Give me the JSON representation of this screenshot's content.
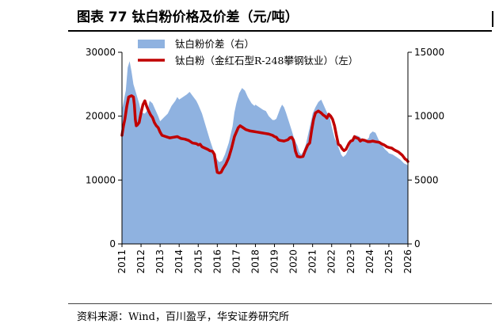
{
  "title": "图表 77 钛白粉价格及价差（元/吨）",
  "source": "资料来源：Wind，百川盈孚，华安证券研究所",
  "chart_data": {
    "type": "area+line",
    "x_ticks": [
      "2011",
      "2012",
      "2013",
      "2014",
      "2015",
      "2016",
      "2017",
      "2018",
      "2019",
      "2020",
      "2021",
      "2022",
      "2023",
      "2024",
      "2025",
      "2026"
    ],
    "x_range": [
      2011,
      2026
    ],
    "y_left_ticks": [
      "0",
      "10000",
      "20000",
      "30000"
    ],
    "y_left_range": [
      0,
      30000
    ],
    "y_right_ticks": [
      "0",
      "5000",
      "10000",
      "15000"
    ],
    "y_right_range": [
      0,
      15000
    ],
    "colors": {
      "spread": "#8fb2e0",
      "price": "#c00000"
    },
    "series": [
      {
        "name": "钛白粉价差（右）",
        "axis": "right",
        "type": "area",
        "points": [
          [
            2011.0,
            10500
          ],
          [
            2011.2,
            12000
          ],
          [
            2011.3,
            13800
          ],
          [
            2011.4,
            14300
          ],
          [
            2011.5,
            13500
          ],
          [
            2011.6,
            12500
          ],
          [
            2011.7,
            12000
          ],
          [
            2011.9,
            11000
          ],
          [
            2012.0,
            10300
          ],
          [
            2012.2,
            10200
          ],
          [
            2012.35,
            10500
          ],
          [
            2012.45,
            11200
          ],
          [
            2012.6,
            11000
          ],
          [
            2012.75,
            10500
          ],
          [
            2012.9,
            10000
          ],
          [
            2013.0,
            9600
          ],
          [
            2013.2,
            9900
          ],
          [
            2013.4,
            10200
          ],
          [
            2013.6,
            10800
          ],
          [
            2013.8,
            11200
          ],
          [
            2013.9,
            11500
          ],
          [
            2014.0,
            11300
          ],
          [
            2014.2,
            11500
          ],
          [
            2014.4,
            11700
          ],
          [
            2014.55,
            11900
          ],
          [
            2014.7,
            11600
          ],
          [
            2014.9,
            11200
          ],
          [
            2015.0,
            10900
          ],
          [
            2015.2,
            10200
          ],
          [
            2015.4,
            9200
          ],
          [
            2015.6,
            8200
          ],
          [
            2015.8,
            7300
          ],
          [
            2015.9,
            6900
          ],
          [
            2016.0,
            6600
          ],
          [
            2016.1,
            6400
          ],
          [
            2016.25,
            6500
          ],
          [
            2016.4,
            7000
          ],
          [
            2016.6,
            7900
          ],
          [
            2016.8,
            9200
          ],
          [
            2016.9,
            10300
          ],
          [
            2017.0,
            11000
          ],
          [
            2017.15,
            11800
          ],
          [
            2017.3,
            12200
          ],
          [
            2017.45,
            12000
          ],
          [
            2017.6,
            11500
          ],
          [
            2017.8,
            11000
          ],
          [
            2017.95,
            10800
          ],
          [
            2018.0,
            10900
          ],
          [
            2018.2,
            10700
          ],
          [
            2018.4,
            10500
          ],
          [
            2018.55,
            10400
          ],
          [
            2018.7,
            10000
          ],
          [
            2018.9,
            9700
          ],
          [
            2019.0,
            9700
          ],
          [
            2019.1,
            9800
          ],
          [
            2019.2,
            10200
          ],
          [
            2019.3,
            10600
          ],
          [
            2019.4,
            10900
          ],
          [
            2019.5,
            10700
          ],
          [
            2019.6,
            10300
          ],
          [
            2019.75,
            9600
          ],
          [
            2019.9,
            8900
          ],
          [
            2020.0,
            8400
          ],
          [
            2020.1,
            8000
          ],
          [
            2020.2,
            7700
          ],
          [
            2020.3,
            7200
          ],
          [
            2020.4,
            7000
          ],
          [
            2020.5,
            7200
          ],
          [
            2020.65,
            7800
          ],
          [
            2020.8,
            8800
          ],
          [
            2020.95,
            9800
          ],
          [
            2021.0,
            10200
          ],
          [
            2021.15,
            10700
          ],
          [
            2021.3,
            11100
          ],
          [
            2021.45,
            11300
          ],
          [
            2021.6,
            10800
          ],
          [
            2021.75,
            10300
          ],
          [
            2021.9,
            9900
          ],
          [
            2022.0,
            9200
          ],
          [
            2022.15,
            8300
          ],
          [
            2022.3,
            7800
          ],
          [
            2022.4,
            7400
          ],
          [
            2022.5,
            7000
          ],
          [
            2022.6,
            6800
          ],
          [
            2022.75,
            7000
          ],
          [
            2022.9,
            7500
          ],
          [
            2023.0,
            8000
          ],
          [
            2023.15,
            8300
          ],
          [
            2023.3,
            8500
          ],
          [
            2023.45,
            8400
          ],
          [
            2023.6,
            8200
          ],
          [
            2023.8,
            8100
          ],
          [
            2023.95,
            8300
          ],
          [
            2024.0,
            8600
          ],
          [
            2024.15,
            8800
          ],
          [
            2024.3,
            8700
          ],
          [
            2024.45,
            8200
          ],
          [
            2024.6,
            7800
          ],
          [
            2024.8,
            7400
          ],
          [
            2024.95,
            7200
          ],
          [
            2025.0,
            7100
          ],
          [
            2025.2,
            7000
          ],
          [
            2025.4,
            6800
          ],
          [
            2025.6,
            6600
          ],
          [
            2025.8,
            6300
          ],
          [
            2025.95,
            6200
          ],
          [
            2026.0,
            6100
          ]
        ]
      },
      {
        "name": "钛白粉（金红石型R-248攀钢钛业）（左）",
        "axis": "left",
        "type": "line",
        "points": [
          [
            2011.0,
            17000
          ],
          [
            2011.08,
            18500
          ],
          [
            2011.15,
            19500
          ],
          [
            2011.25,
            21500
          ],
          [
            2011.35,
            23000
          ],
          [
            2011.5,
            23200
          ],
          [
            2011.6,
            23000
          ],
          [
            2011.65,
            21800
          ],
          [
            2011.7,
            19500
          ],
          [
            2011.75,
            18500
          ],
          [
            2011.8,
            18600
          ],
          [
            2011.9,
            19000
          ],
          [
            2012.0,
            20500
          ],
          [
            2012.1,
            21800
          ],
          [
            2012.2,
            22400
          ],
          [
            2012.3,
            21500
          ],
          [
            2012.4,
            20800
          ],
          [
            2012.5,
            20200
          ],
          [
            2012.6,
            19800
          ],
          [
            2012.7,
            19000
          ],
          [
            2012.8,
            18500
          ],
          [
            2012.9,
            18200
          ],
          [
            2013.0,
            17500
          ],
          [
            2013.1,
            17000
          ],
          [
            2013.3,
            16800
          ],
          [
            2013.5,
            16600
          ],
          [
            2013.7,
            16700
          ],
          [
            2013.9,
            16800
          ],
          [
            2014.1,
            16500
          ],
          [
            2014.3,
            16400
          ],
          [
            2014.5,
            16200
          ],
          [
            2014.7,
            15800
          ],
          [
            2014.9,
            15700
          ],
          [
            2015.0,
            15500
          ],
          [
            2015.1,
            15600
          ],
          [
            2015.2,
            15200
          ],
          [
            2015.35,
            15000
          ],
          [
            2015.5,
            14800
          ],
          [
            2015.6,
            14600
          ],
          [
            2015.75,
            14500
          ],
          [
            2015.85,
            14000
          ],
          [
            2015.95,
            12000
          ],
          [
            2016.0,
            11200
          ],
          [
            2016.1,
            11100
          ],
          [
            2016.2,
            11200
          ],
          [
            2016.3,
            11800
          ],
          [
            2016.45,
            12500
          ],
          [
            2016.6,
            13500
          ],
          [
            2016.75,
            15000
          ],
          [
            2016.9,
            16800
          ],
          [
            2017.0,
            17500
          ],
          [
            2017.1,
            18200
          ],
          [
            2017.2,
            18500
          ],
          [
            2017.3,
            18300
          ],
          [
            2017.5,
            17900
          ],
          [
            2017.7,
            17700
          ],
          [
            2017.9,
            17600
          ],
          [
            2018.1,
            17500
          ],
          [
            2018.3,
            17400
          ],
          [
            2018.5,
            17300
          ],
          [
            2018.7,
            17200
          ],
          [
            2018.9,
            17000
          ],
          [
            2019.0,
            16800
          ],
          [
            2019.1,
            16700
          ],
          [
            2019.2,
            16300
          ],
          [
            2019.3,
            16200
          ],
          [
            2019.5,
            16100
          ],
          [
            2019.7,
            16300
          ],
          [
            2019.8,
            16600
          ],
          [
            2019.9,
            16700
          ],
          [
            2020.0,
            16200
          ],
          [
            2020.1,
            14500
          ],
          [
            2020.2,
            13700
          ],
          [
            2020.35,
            13600
          ],
          [
            2020.5,
            13700
          ],
          [
            2020.6,
            14500
          ],
          [
            2020.75,
            15500
          ],
          [
            2020.85,
            15800
          ],
          [
            2020.95,
            17800
          ],
          [
            2021.05,
            19500
          ],
          [
            2021.15,
            20500
          ],
          [
            2021.3,
            20800
          ],
          [
            2021.45,
            20500
          ],
          [
            2021.55,
            20200
          ],
          [
            2021.65,
            20000
          ],
          [
            2021.75,
            19700
          ],
          [
            2021.85,
            20300
          ],
          [
            2021.95,
            20000
          ],
          [
            2022.05,
            19500
          ],
          [
            2022.15,
            18500
          ],
          [
            2022.25,
            17000
          ],
          [
            2022.35,
            15600
          ],
          [
            2022.45,
            15400
          ],
          [
            2022.55,
            14900
          ],
          [
            2022.65,
            14600
          ],
          [
            2022.75,
            14800
          ],
          [
            2022.9,
            15700
          ],
          [
            2023.0,
            16100
          ],
          [
            2023.1,
            16200
          ],
          [
            2023.2,
            16800
          ],
          [
            2023.3,
            16600
          ],
          [
            2023.4,
            16500
          ],
          [
            2023.5,
            16100
          ],
          [
            2023.6,
            16300
          ],
          [
            2023.75,
            16200
          ],
          [
            2023.9,
            16000
          ],
          [
            2024.0,
            16000
          ],
          [
            2024.15,
            16100
          ],
          [
            2024.3,
            16000
          ],
          [
            2024.5,
            15900
          ],
          [
            2024.6,
            15700
          ],
          [
            2024.75,
            15500
          ],
          [
            2024.9,
            15200
          ],
          [
            2025.0,
            15100
          ],
          [
            2025.15,
            15000
          ],
          [
            2025.3,
            14700
          ],
          [
            2025.5,
            14400
          ],
          [
            2025.7,
            13900
          ],
          [
            2025.85,
            13300
          ],
          [
            2025.95,
            13100
          ],
          [
            2026.0,
            12900
          ]
        ]
      }
    ]
  }
}
